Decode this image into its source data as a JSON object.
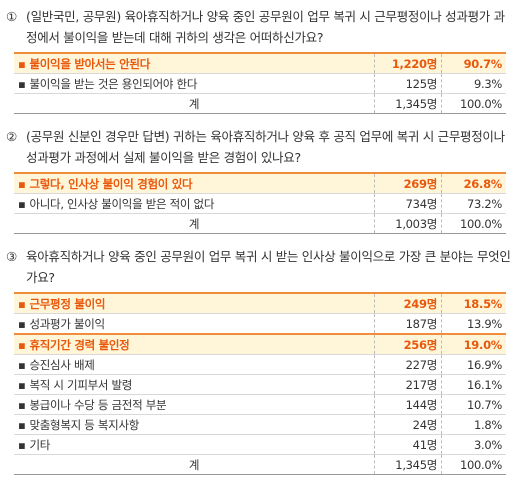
{
  "sections": [
    {
      "number": "①",
      "question": "(일반국민, 공무원) 육아휴직하거나 양육 중인 공무원이 업무 복귀 시 근무평정이나 성과평가 과정에서 불이익을 받는데 대해 귀하의 생각은 어떠하신가요?",
      "rows": [
        {
          "label": "불이익을 받아서는 안된다",
          "count": "1,220명",
          "percent": "90.7%",
          "highlight": true
        },
        {
          "label": "불이익을 받는 것은 용인되어야 한다",
          "count": "125명",
          "percent": "9.3%",
          "highlight": false
        }
      ],
      "total": {
        "label": "계",
        "count": "1,345명",
        "percent": "100.0%"
      }
    },
    {
      "number": "②",
      "question": "(공무원 신분인 경우만 답변) 귀하는 육아휴직하거나 양육 후 공직 업무에 복귀 시 근무평정이나 성과평가 과정에서 실제 불이익을 받은 경험이 있나요?",
      "rows": [
        {
          "label": "그렇다, 인사상 불이익 경험이 있다",
          "count": "269명",
          "percent": "26.8%",
          "highlight": true
        },
        {
          "label": "아니다, 인사상 불이익을 받은 적이 없다",
          "count": "734명",
          "percent": "73.2%",
          "highlight": false
        }
      ],
      "total": {
        "label": "계",
        "count": "1,003명",
        "percent": "100.0%"
      }
    },
    {
      "number": "③",
      "question": "육아휴직하거나 양육 중인 공무원이 업무 복귀 시 받는 인사상 불이익으로 가장 큰 분야는 무엇인가요?",
      "rows": [
        {
          "label": "근무평정 불이익",
          "count": "249명",
          "percent": "18.5%",
          "highlight": true
        },
        {
          "label": "성과평가 불이익",
          "count": "187명",
          "percent": "13.9%",
          "highlight": false
        },
        {
          "label": "휴직기간 경력 불인정",
          "count": "256명",
          "percent": "19.0%",
          "highlight": true
        },
        {
          "label": "승진심사 배제",
          "count": "227명",
          "percent": "16.9%",
          "highlight": false
        },
        {
          "label": "복직 시 기피부서 발령",
          "count": "217명",
          "percent": "16.1%",
          "highlight": false
        },
        {
          "label": "봉급이나 수당 등 금전적 부분",
          "count": "144명",
          "percent": "10.7%",
          "highlight": false
        },
        {
          "label": "맞춤형복지 등 복지사항",
          "count": "24명",
          "percent": "1.8%",
          "highlight": false
        },
        {
          "label": "기타",
          "count": "41명",
          "percent": "3.0%",
          "highlight": false
        }
      ],
      "total": {
        "label": "계",
        "count": "1,345명",
        "percent": "100.0%"
      }
    }
  ]
}
